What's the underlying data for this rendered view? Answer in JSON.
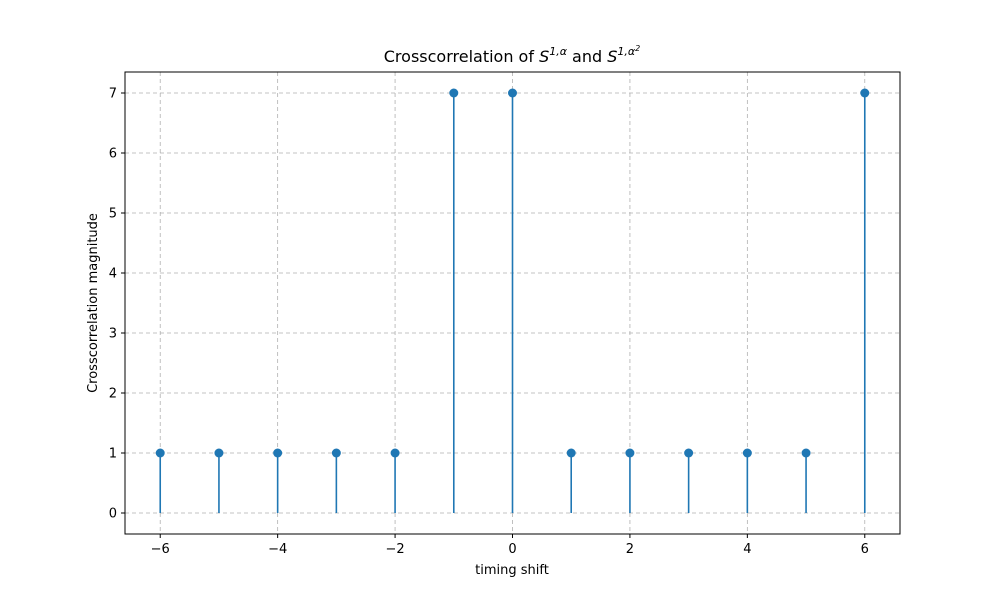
{
  "chart_data": {
    "type": "stem",
    "title": {
      "prefix": "Crosscorrelation of ",
      "term1_base": "S",
      "term1_sup": "1,α",
      "middle": " and ",
      "term2_base": "S",
      "term2_sup": "1,α",
      "term2_sup_exponent": "2"
    },
    "xlabel": "timing shift",
    "ylabel": "Crosscorrelation  magnitude",
    "x": [
      -6,
      -5,
      -4,
      -3,
      -2,
      -1,
      0,
      1,
      2,
      3,
      4,
      5,
      6
    ],
    "y": [
      1,
      1,
      1,
      1,
      1,
      7,
      7,
      1,
      1,
      1,
      1,
      1,
      7
    ],
    "xlim": [
      -6.6,
      6.6
    ],
    "ylim": [
      -0.35,
      7.35
    ],
    "xticks": [
      -6,
      -4,
      -2,
      0,
      2,
      4,
      6
    ],
    "xtick_labels": [
      "−6",
      "−4",
      "−2",
      "0",
      "2",
      "4",
      "6"
    ],
    "yticks": [
      0,
      1,
      2,
      3,
      4,
      5,
      6,
      7
    ],
    "ytick_labels": [
      "0",
      "1",
      "2",
      "3",
      "4",
      "5",
      "6",
      "7"
    ],
    "grid": true,
    "color": "#1f77b4"
  }
}
